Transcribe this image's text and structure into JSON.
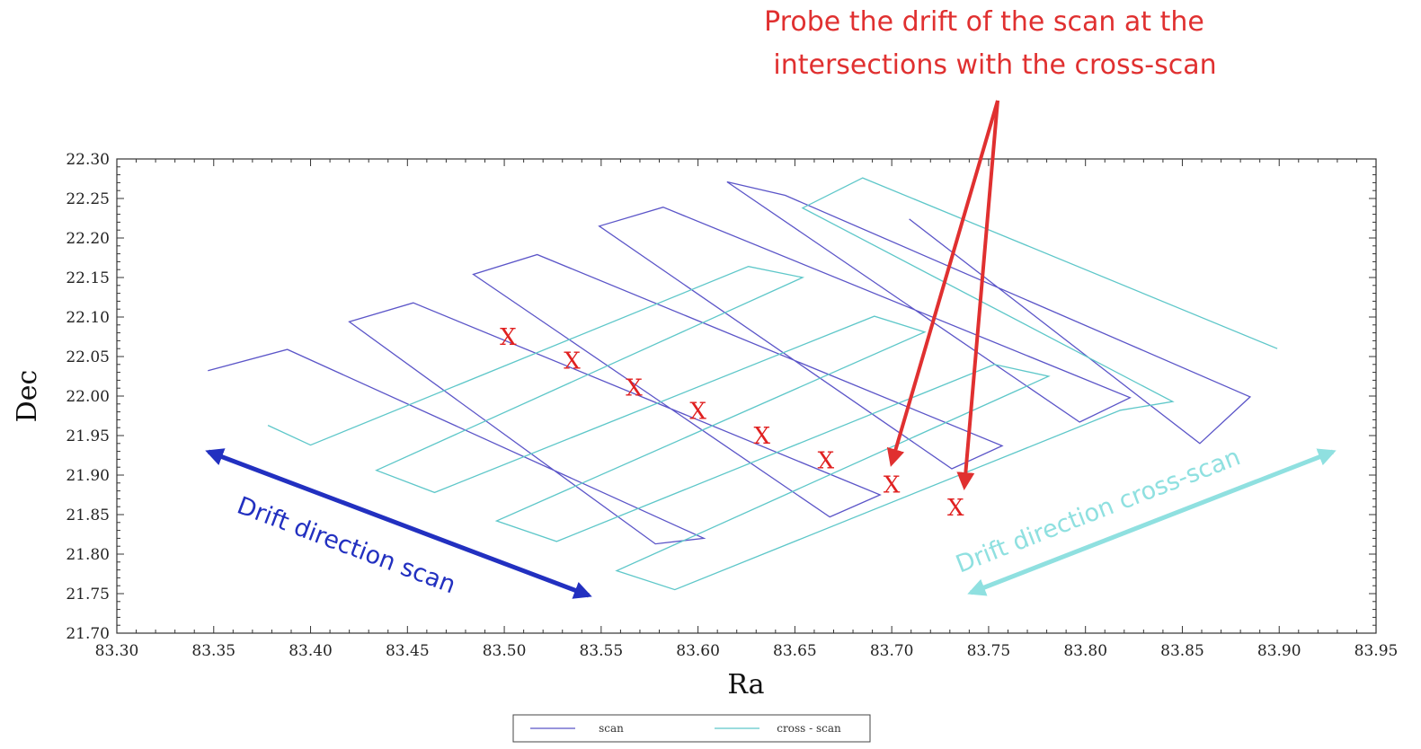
{
  "chart_data": {
    "type": "line",
    "xlabel": "Ra",
    "ylabel": "Dec",
    "xlim": [
      83.3,
      83.95
    ],
    "ylim": [
      21.7,
      22.3
    ],
    "xticks": [
      "83.30",
      "83.35",
      "83.40",
      "83.45",
      "83.50",
      "83.55",
      "83.60",
      "83.65",
      "83.70",
      "83.75",
      "83.80",
      "83.85",
      "83.90",
      "83.95"
    ],
    "yticks": [
      "21.70",
      "21.75",
      "21.80",
      "21.85",
      "21.90",
      "21.95",
      "22.00",
      "22.05",
      "22.10",
      "22.15",
      "22.20",
      "22.25",
      "22.30"
    ],
    "legend_position": "bottom-center",
    "series": [
      {
        "name": "scan",
        "color": "#5b55c8",
        "x": [
          83.347,
          83.388,
          83.603,
          83.578,
          83.42,
          83.453,
          83.694,
          83.668,
          83.484,
          83.517,
          83.757,
          83.731,
          83.549,
          83.582,
          83.823,
          83.797,
          83.615,
          83.645,
          83.885,
          83.859,
          83.709
        ],
        "y": [
          22.032,
          22.059,
          21.82,
          21.813,
          22.094,
          22.118,
          21.875,
          21.847,
          22.154,
          22.179,
          21.937,
          21.908,
          22.215,
          22.239,
          21.998,
          21.967,
          22.271,
          22.254,
          21.999,
          21.94,
          22.224
        ]
      },
      {
        "name": "cross - scan",
        "color": "#5ec7c9",
        "x": [
          83.378,
          83.4,
          83.626,
          83.654,
          83.434,
          83.464,
          83.691,
          83.717,
          83.496,
          83.527,
          83.753,
          83.781,
          83.558,
          83.588,
          83.818,
          83.845,
          83.654,
          83.685,
          83.899
        ],
        "y": [
          21.963,
          21.938,
          22.164,
          22.15,
          21.906,
          21.878,
          22.101,
          22.081,
          21.842,
          21.816,
          22.04,
          22.025,
          21.779,
          21.755,
          21.982,
          21.993,
          22.238,
          22.276,
          22.06
        ]
      }
    ],
    "markers": {
      "symbol": "X",
      "color": "#e02020",
      "x": [
        83.502,
        83.535,
        83.567,
        83.6,
        83.633,
        83.666,
        83.7,
        83.733
      ],
      "y": [
        22.075,
        22.045,
        22.011,
        21.981,
        21.95,
        21.919,
        21.888,
        21.859
      ]
    },
    "annotations": {
      "probe_line1": "Probe the drift of the scan at the",
      "probe_line2": "intersections with the cross-scan",
      "probe_color": "#e03030",
      "drift_scan": "Drift direction scan",
      "drift_scan_color": "#2230c0",
      "drift_cross": "Drift direction cross-scan",
      "drift_cross_color": "#8fe0e0"
    },
    "legend": {
      "scan_label": "scan",
      "cross_label": "cross - scan"
    }
  }
}
